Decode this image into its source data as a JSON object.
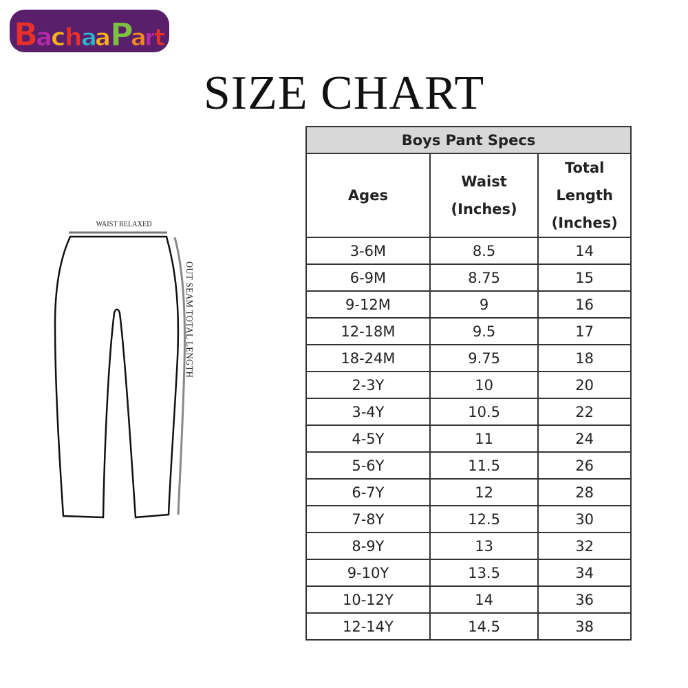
{
  "logo": {
    "text": "BachaaParty",
    "colors": [
      "#e8302a",
      "#b52aa8",
      "#f7b21a",
      "#2bb5c8",
      "#7bc043",
      "#f18a1d",
      "#5a1f6b"
    ]
  },
  "title": "SIZE CHART",
  "diagram": {
    "waist_label": "WAIST RELAXED",
    "seam_label": "OUT SEAM TOTAL LENGTH"
  },
  "table": {
    "caption": "Boys Pant Specs",
    "headers": [
      "Ages",
      "Waist\n(Inches)",
      "Total\nLength\n(Inches)"
    ],
    "rows": [
      [
        "3-6M",
        "8.5",
        "14"
      ],
      [
        "6-9M",
        "8.75",
        "15"
      ],
      [
        "9-12M",
        "9",
        "16"
      ],
      [
        "12-18M",
        "9.5",
        "17"
      ],
      [
        "18-24M",
        "9.75",
        "18"
      ],
      [
        "2-3Y",
        "10",
        "20"
      ],
      [
        "3-4Y",
        "10.5",
        "22"
      ],
      [
        "4-5Y",
        "11",
        "24"
      ],
      [
        "5-6Y",
        "11.5",
        "26"
      ],
      [
        "6-7Y",
        "12",
        "28"
      ],
      [
        "7-8Y",
        "12.5",
        "30"
      ],
      [
        "8-9Y",
        "13",
        "32"
      ],
      [
        "9-10Y",
        "13.5",
        "34"
      ],
      [
        "10-12Y",
        "14",
        "36"
      ],
      [
        "12-14Y",
        "14.5",
        "38"
      ]
    ],
    "header_bg": "#d8d8d8"
  }
}
